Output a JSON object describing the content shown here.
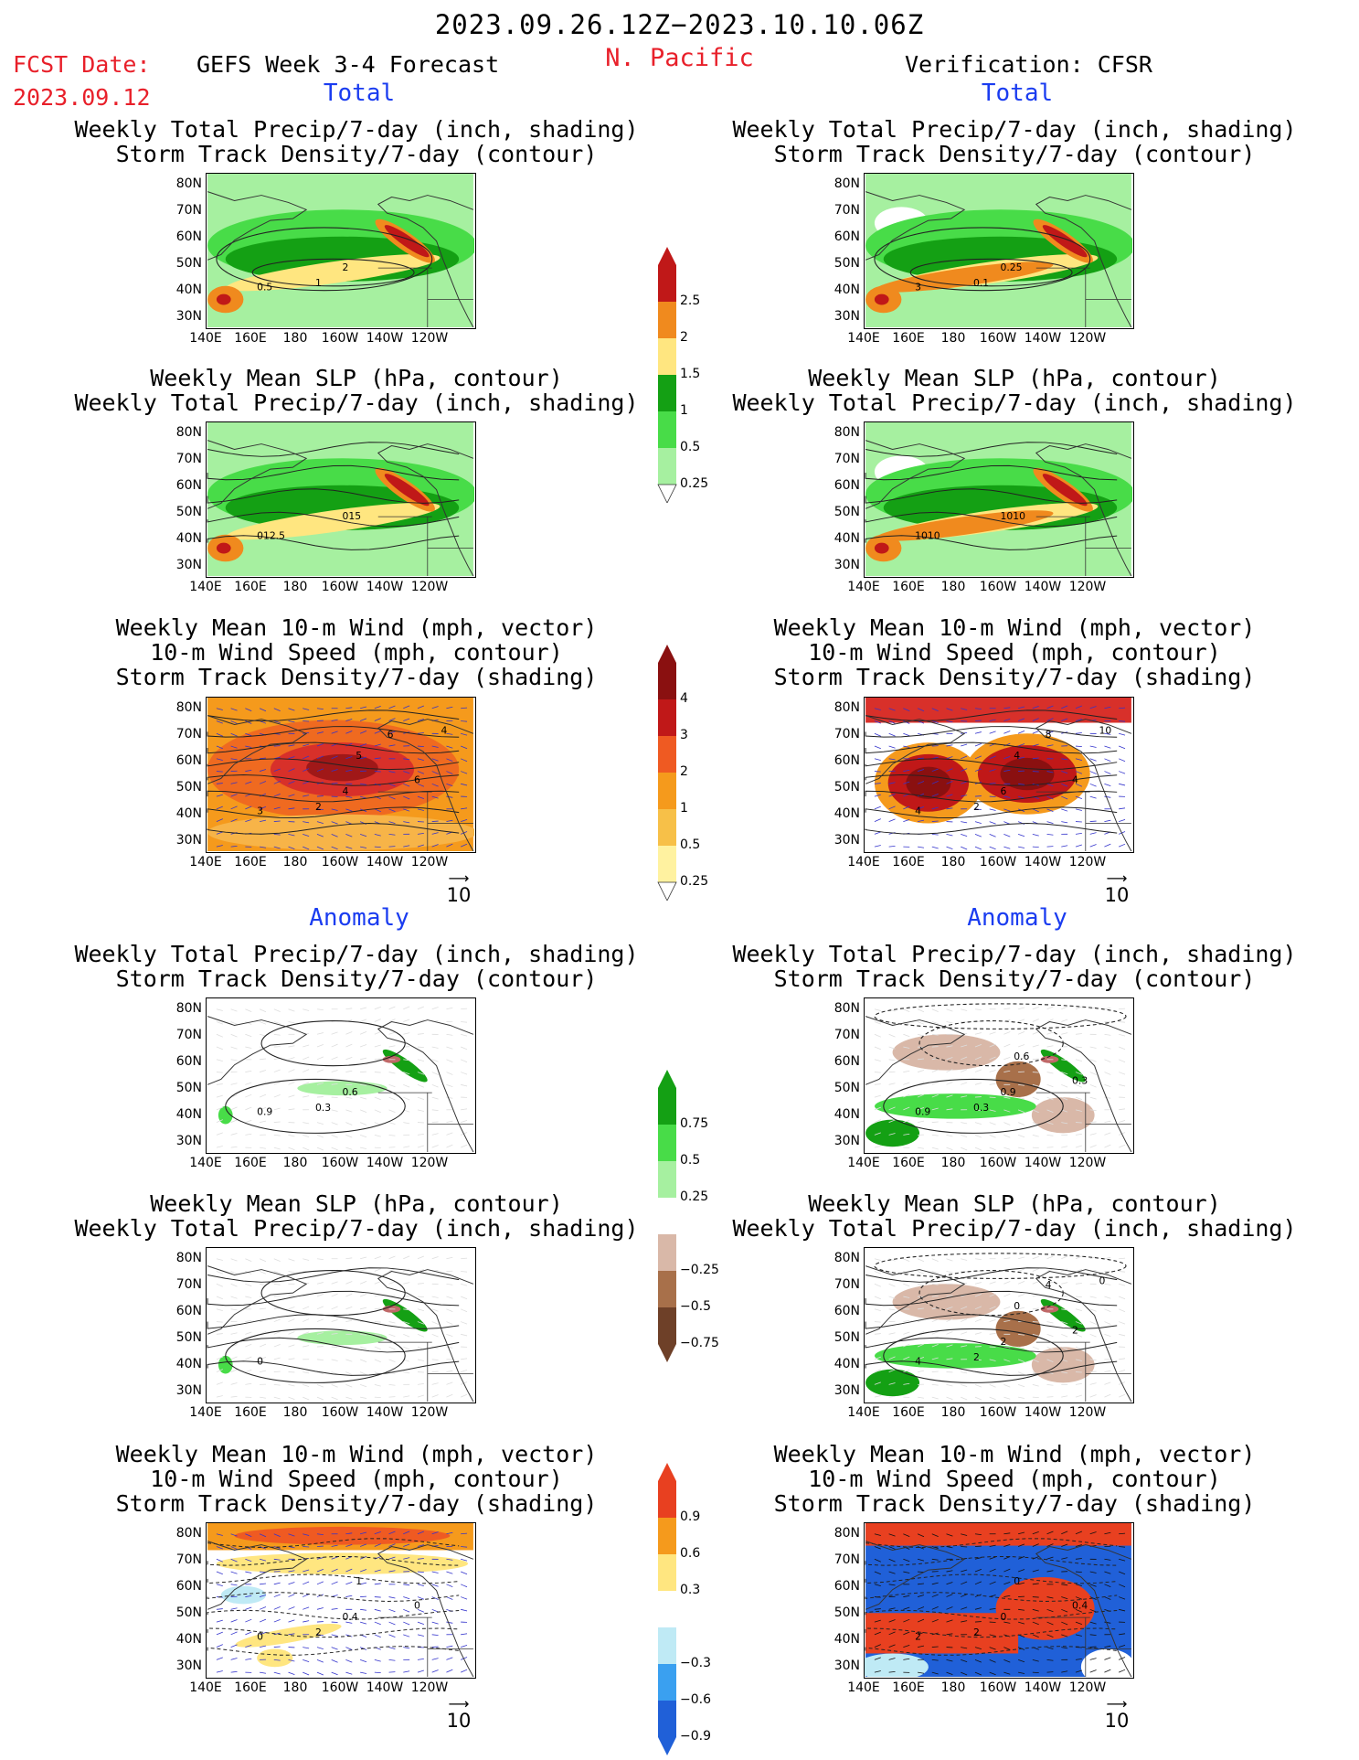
{
  "header": {
    "period": "2023.09.26.12Z−2023.10.10.06Z",
    "fcst_label": "FCST Date:",
    "fcst_date": "2023.09.12",
    "model": "GEFS Week 3-4 Forecast",
    "region": "N. Pacific",
    "verification": "Verification: CFSR"
  },
  "sections": {
    "total": "Total",
    "anomaly": "Anomaly"
  },
  "axes": {
    "lat_ticks": [
      "80N",
      "70N",
      "60N",
      "50N",
      "40N",
      "30N"
    ],
    "lon_ticks": [
      "140E",
      "160E",
      "180",
      "160W",
      "140W",
      "120W"
    ]
  },
  "titles": {
    "precip_track": [
      "Weekly Total Precip/7-day (inch, shading)",
      "Storm Track Density/7-day (contour)"
    ],
    "slp_precip": [
      "Weekly Mean SLP (hPa, contour)",
      "Weekly Total Precip/7-day (inch, shading)"
    ],
    "wind_track": [
      "Weekly Mean 10-m Wind (mph, vector)",
      "10-m Wind Speed (mph, contour)",
      "Storm Track Density/7-day (shading)"
    ]
  },
  "colorbars": {
    "total_precip": [
      "2.5",
      "2",
      "1.5",
      "1",
      "0.5",
      "0.25"
    ],
    "total_track": [
      "4",
      "3",
      "2",
      "1",
      "0.5",
      "0.25"
    ],
    "anom_precip": [
      "0.75",
      "0.5",
      "0.25",
      "−0.25",
      "−0.5",
      "−0.75"
    ],
    "anom_track": [
      "0.9",
      "0.6",
      "0.3",
      "−0.3",
      "−0.6",
      "−0.9"
    ]
  },
  "vector_reference": "10",
  "contour_labels": {
    "f_total_precip": [
      "0.5",
      "2",
      "1"
    ],
    "v_total_precip": [
      "3",
      "0.25",
      "0.1"
    ],
    "f_total_slp": [
      "012.5",
      "015"
    ],
    "v_total_slp": [
      "1010",
      "1010"
    ],
    "f_total_wind": [
      "3",
      "4",
      "2",
      "5",
      "6",
      "6",
      "4"
    ],
    "v_total_wind": [
      "4",
      "6",
      "2",
      "4",
      "4",
      "8",
      "10"
    ],
    "f_anom_precip": [
      "0.9",
      "0.6",
      "0.3"
    ],
    "v_anom_precip": [
      "0.9",
      "0.9",
      "0.3",
      "0.6",
      "0.3"
    ],
    "f_anom_slp": [
      "0"
    ],
    "v_anom_slp": [
      "4",
      "2",
      "2",
      "0",
      "2",
      "4",
      "0"
    ],
    "f_anom_wind": [
      "0",
      "0.4",
      "2",
      "1",
      "0"
    ],
    "v_anom_wind": [
      "2",
      "0",
      "2",
      "0",
      "0.4"
    ]
  },
  "colors": {
    "red": "#e8202a",
    "blue": "#1a3cf0"
  }
}
